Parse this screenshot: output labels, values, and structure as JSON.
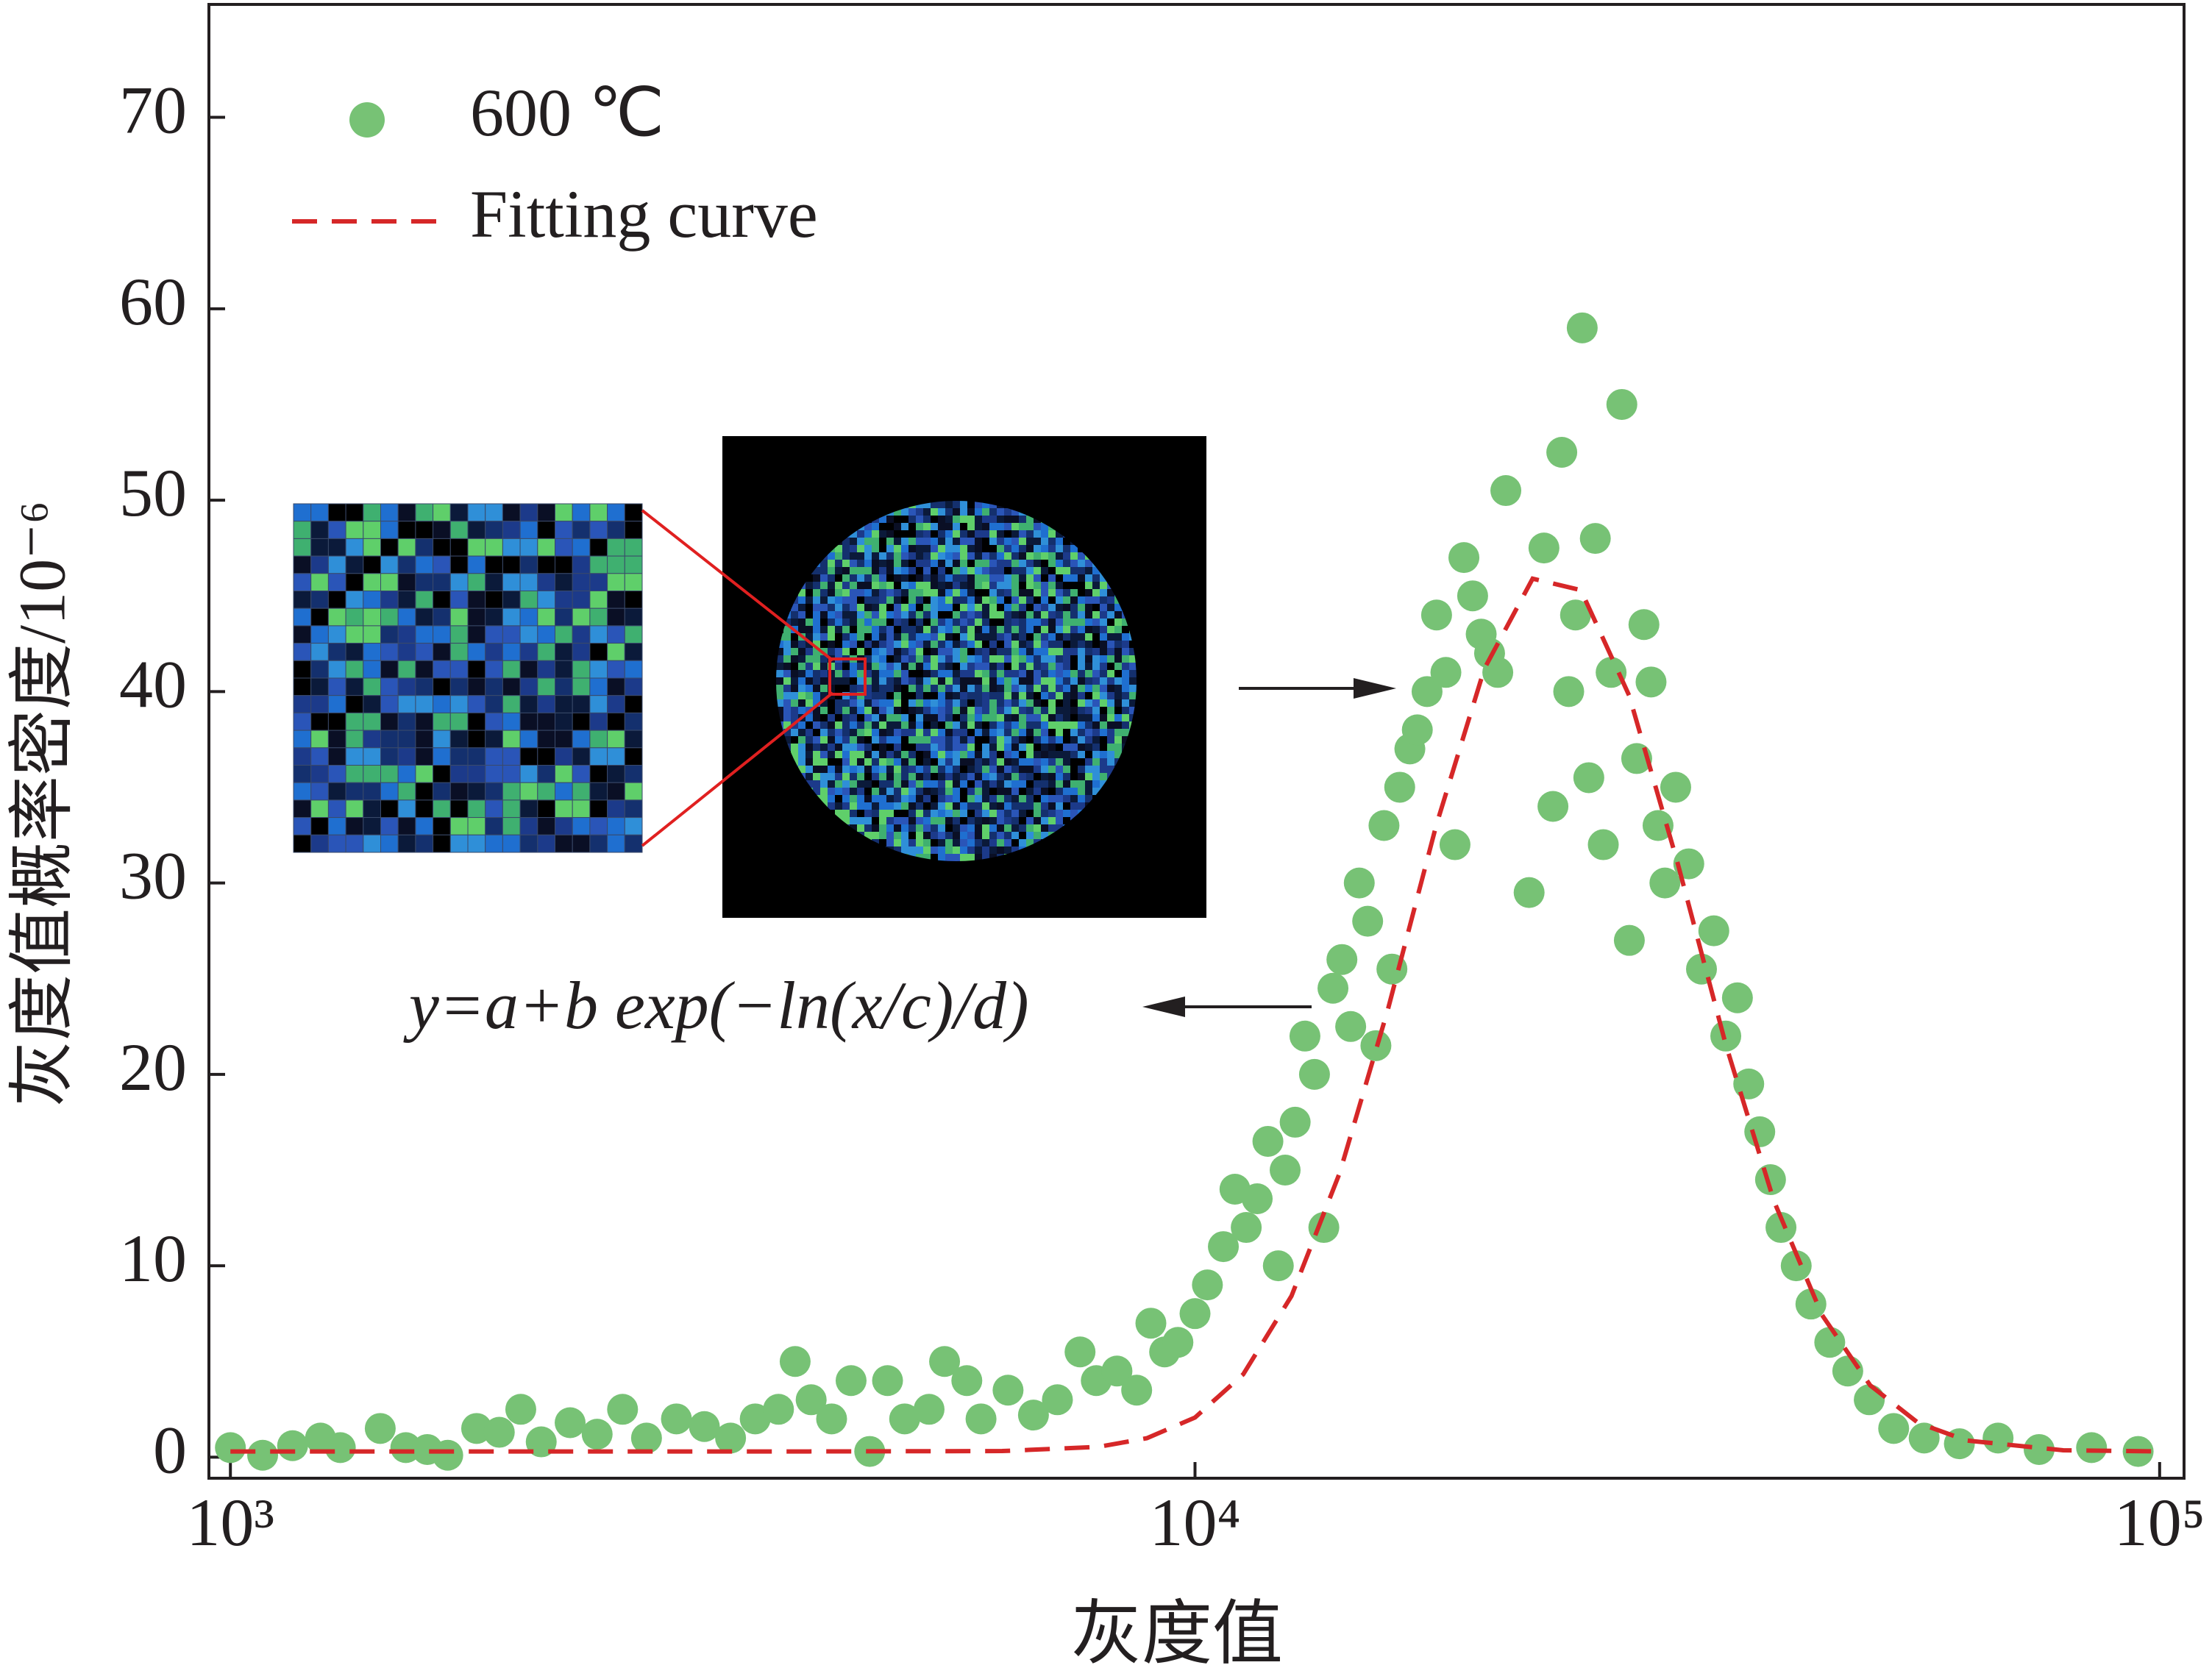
{
  "chart_data": {
    "type": "scatter",
    "xlabel": "灰度值",
    "ylabel": "灰度值概率密度/10⁻⁶",
    "xscale": "log",
    "xlim": [
      950,
      106000
    ],
    "ylim": [
      -1.1,
      75.9
    ],
    "xticks": [
      {
        "value": 1000,
        "label": "10³"
      },
      {
        "value": 10000,
        "label": "10⁴"
      },
      {
        "value": 100000,
        "label": "10⁵"
      }
    ],
    "yticks": [
      0,
      10,
      20,
      30,
      40,
      50,
      60,
      70
    ],
    "legend": "upper left",
    "annotation": "y=a+b exp(−ln(x/c)/d)",
    "series": [
      {
        "name": "600 ℃",
        "type": "scatter",
        "color": "#77c275",
        "x": [
          1000,
          1080,
          1160,
          1240,
          1300,
          1430,
          1520,
          1600,
          1680,
          1800,
          1900,
          2000,
          2100,
          2250,
          2400,
          2550,
          2700,
          2900,
          3100,
          3300,
          3500,
          3700,
          3850,
          4000,
          4200,
          4400,
          4600,
          4800,
          5000,
          5300,
          5500,
          5800,
          6000,
          6400,
          6800,
          7200,
          7600,
          7900,
          8300,
          8700,
          9000,
          9300,
          9600,
          10000,
          10300,
          10700,
          11000,
          11300,
          11600,
          11900,
          12200,
          12400,
          12700,
          13000,
          13300,
          13600,
          13900,
          14200,
          14500,
          14800,
          15100,
          15400,
          15700,
          16000,
          16300,
          16700,
          17000,
          17400,
          17800,
          18200,
          18600,
          19000,
          19400,
          19800,
          20200,
          20600,
          21000,
          22200,
          23000,
          23500,
          24000,
          24400,
          24800,
          25200,
          25600,
          26000,
          26500,
          27000,
          27700,
          28200,
          28700,
          29200,
          29700,
          30200,
          30700,
          31500,
          32500,
          33500,
          34500,
          35500,
          36500,
          37500,
          38500,
          39500,
          40500,
          42000,
          43500,
          45500,
          47500,
          50000,
          53000,
          57000,
          62000,
          68000,
          75000,
          85000,
          95000
        ],
        "values": [
          0.5,
          0.1,
          0.6,
          1.0,
          0.5,
          1.5,
          0.5,
          0.4,
          0.1,
          1.5,
          1.3,
          2.5,
          0.8,
          1.8,
          1.2,
          2.5,
          1.0,
          2.0,
          1.6,
          1.0,
          2.0,
          2.5,
          5.0,
          3.0,
          2.0,
          4.0,
          0.3,
          4.0,
          2.0,
          2.5,
          5.0,
          4.0,
          2.0,
          3.5,
          2.2,
          3.0,
          5.5,
          4.0,
          4.5,
          3.5,
          7.0,
          5.5,
          6.0,
          7.5,
          9.0,
          11.0,
          14.0,
          12.0,
          13.5,
          16.5,
          10.0,
          15.0,
          17.5,
          22.0,
          20.0,
          12.0,
          24.5,
          26.0,
          22.5,
          30.0,
          28.0,
          21.5,
          33.0,
          25.5,
          35.0,
          37.0,
          38.0,
          40.0,
          44.0,
          41.0,
          32.0,
          47.0,
          45.0,
          43.0,
          42.0,
          41.0,
          50.5,
          29.5,
          47.5,
          34.0,
          52.5,
          40.0,
          44.0,
          59.0,
          35.5,
          48.0,
          32.0,
          41.0,
          55.0,
          27.0,
          36.5,
          43.5,
          40.5,
          33.0,
          30.0,
          35.0,
          31.0,
          25.5,
          27.5,
          22.0,
          24.0,
          19.5,
          17.0,
          14.5,
          12.0,
          10.0,
          8.0,
          6.0,
          4.5,
          3.0,
          1.5,
          1.0,
          0.7,
          1.0,
          0.4,
          0.5,
          0.3
        ]
      },
      {
        "name": "Fitting curve",
        "type": "line",
        "color": "#d62728",
        "x": [
          1000,
          1995,
          3981,
          6310,
          7943,
          8913,
          10000,
          11220,
          12589,
          14125,
          15849,
          17783,
          19953,
          22387,
          25119,
          28184,
          31623,
          35481,
          39811,
          44668,
          50119,
          56234,
          63096,
          79433,
          100000
        ],
        "values": [
          0.3,
          0.3,
          0.3,
          0.32,
          0.54,
          0.99,
          2.07,
          4.33,
          8.42,
          14.85,
          23.4,
          33.0,
          41.2,
          45.9,
          45.3,
          39.8,
          31.1,
          21.6,
          13.4,
          7.43,
          3.75,
          1.78,
          0.87,
          0.36,
          0.3
        ]
      }
    ]
  }
}
